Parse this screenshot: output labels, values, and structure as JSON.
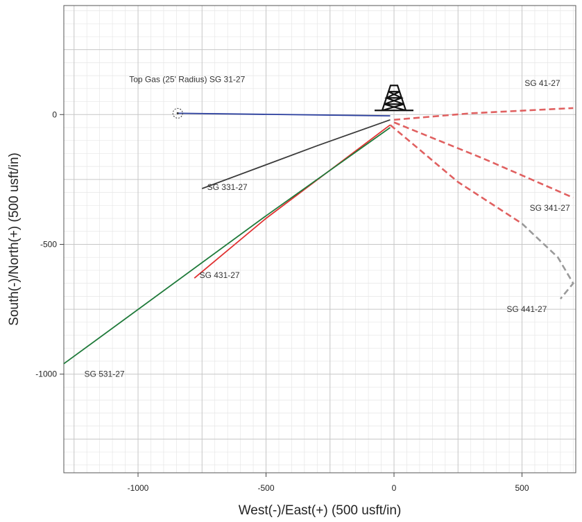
{
  "chart_data": {
    "type": "line",
    "xlabel": "West(-)/East(+) (500 usft/in)",
    "ylabel": "South(-)/North(+) (500 usft/in)",
    "xlim": [
      -1290,
      710
    ],
    "ylim": [
      -1380,
      420
    ],
    "x_ticks": [
      -1000,
      -500,
      0,
      500
    ],
    "y_ticks": [
      0,
      -500,
      -1000
    ],
    "x_tick_labels": [
      "-1000",
      "-500",
      "0",
      "500"
    ],
    "y_tick_labels": [
      "0",
      "-500",
      "-1000"
    ],
    "grid": true,
    "rig_symbol": {
      "x": 0,
      "y": 0
    },
    "target": {
      "label": "Top Gas (25' Radius) SG 31-27",
      "x": -845,
      "y": 5
    },
    "series": [
      {
        "name": "SG 31-27",
        "color": "#2b3f9e",
        "style": "solid",
        "x": [
          -15,
          -845
        ],
        "y": [
          -5,
          5
        ]
      },
      {
        "name": "SG 331-27",
        "color": "#3a3a3a",
        "style": "solid",
        "x": [
          -15,
          -300,
          -750
        ],
        "y": [
          -20,
          -120,
          -285
        ]
      },
      {
        "name": "SG 431-27",
        "color": "#e03030",
        "style": "solid",
        "x": [
          -15,
          -500,
          -780
        ],
        "y": [
          -40,
          -400,
          -630
        ]
      },
      {
        "name": "SG 531-27",
        "color": "#1f7a3a",
        "style": "solid",
        "x": [
          -15,
          -500,
          -1290
        ],
        "y": [
          -50,
          -390,
          -960
        ]
      },
      {
        "name": "SG 41-27",
        "color": "#e06060",
        "style": "dashed",
        "x": [
          0,
          300,
          700
        ],
        "y": [
          -20,
          5,
          25
        ]
      },
      {
        "name": "SG 341-27",
        "color": "#e06060",
        "style": "dashed",
        "x": [
          0,
          350,
          700
        ],
        "y": [
          -30,
          -170,
          -320
        ]
      },
      {
        "name": "SG 441-27",
        "color": "#e06060",
        "style": "dashed",
        "x": [
          -15,
          250,
          500
        ],
        "y": [
          -40,
          -260,
          -420
        ]
      },
      {
        "name": "SG 441-27 ext",
        "color": "#9a9a9a",
        "style": "dashed",
        "x": [
          500,
          640,
          700,
          650
        ],
        "y": [
          -420,
          -550,
          -650,
          -710
        ]
      }
    ],
    "series_labels": [
      {
        "text": "SG 41-27",
        "x": 510,
        "y": 110
      },
      {
        "text": "SG 331-27",
        "x": -730,
        "y": -290
      },
      {
        "text": "SG 341-27",
        "x": 530,
        "y": -370
      },
      {
        "text": "SG 431-27",
        "x": -760,
        "y": -630
      },
      {
        "text": "SG 441-27",
        "x": 440,
        "y": -760
      },
      {
        "text": "SG 531-27",
        "x": -1210,
        "y": -1010
      }
    ]
  }
}
